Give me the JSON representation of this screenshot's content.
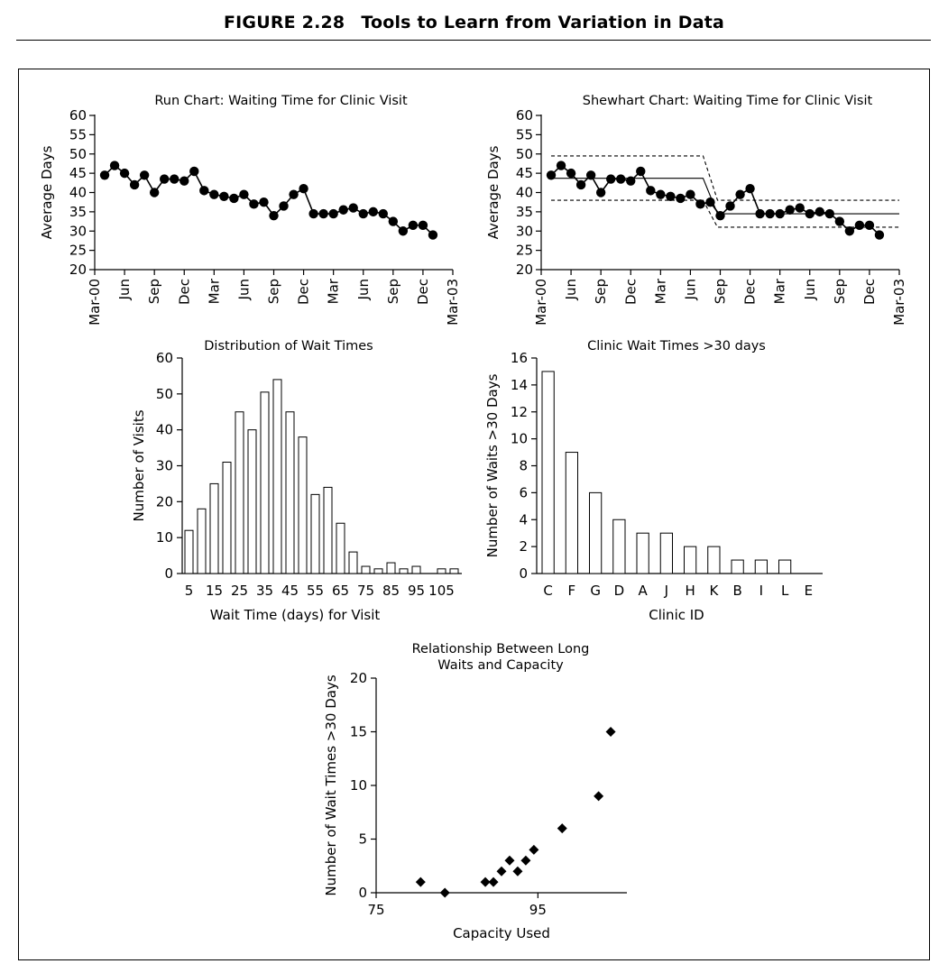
{
  "figure": {
    "label": "FIGURE 2.28",
    "title": "Tools to Learn from Variation in Data"
  },
  "chart_data": [
    {
      "type": "line",
      "title": "Run Chart: Waiting Time for Clinic Visit",
      "ylabel": "Average Days",
      "xlabel": "",
      "ylim": [
        20,
        60
      ],
      "yticks": [
        20,
        25,
        30,
        35,
        40,
        45,
        50,
        55,
        60
      ],
      "xtick_labels": [
        "Mar-00",
        "Jun",
        "Sep",
        "Dec",
        "Mar",
        "Jun",
        "Sep",
        "Dec",
        "Mar",
        "Jun",
        "Sep",
        "Dec",
        "Mar-03"
      ],
      "x": [
        "Apr-00",
        "May-00",
        "Jun-00",
        "Jul-00",
        "Aug-00",
        "Sep-00",
        "Oct-00",
        "Nov-00",
        "Dec-00",
        "Jan-01",
        "Feb-01",
        "Mar-01",
        "Apr-01",
        "May-01",
        "Jun-01",
        "Jul-01",
        "Aug-01",
        "Sep-01",
        "Oct-01",
        "Nov-01",
        "Dec-01",
        "Jan-02",
        "Feb-02",
        "Mar-02",
        "Apr-02",
        "May-02",
        "Jun-02",
        "Jul-02",
        "Aug-02",
        "Sep-02",
        "Oct-02",
        "Nov-02",
        "Dec-02",
        "Jan-03"
      ],
      "series": [
        {
          "values": [
            44.5,
            47,
            45,
            42,
            44.5,
            40,
            43.5,
            43.5,
            43,
            45.5,
            40.5,
            39.5,
            39,
            38.5,
            39.5,
            37,
            37.5,
            34,
            36.5,
            39.5,
            41,
            34.5,
            34.5,
            34.5,
            35.5,
            36,
            34.5,
            35,
            34.5,
            32.5,
            30,
            31.5,
            31.5,
            29
          ]
        }
      ],
      "grid": false
    },
    {
      "type": "line",
      "title": "Shewhart Chart: Waiting Time for Clinic Visit",
      "ylabel": "Average Days",
      "xlabel": "",
      "ylim": [
        20,
        60
      ],
      "yticks": [
        20,
        25,
        30,
        35,
        40,
        45,
        50,
        55,
        60
      ],
      "xtick_labels": [
        "Mar-00",
        "Jun",
        "Sep",
        "Dec",
        "Mar",
        "Jun",
        "Sep",
        "Dec",
        "Mar",
        "Jun",
        "Sep",
        "Dec",
        "Mar-03"
      ],
      "x": [
        "Apr-00",
        "May-00",
        "Jun-00",
        "Jul-00",
        "Aug-00",
        "Sep-00",
        "Oct-00",
        "Nov-00",
        "Dec-00",
        "Jan-01",
        "Feb-01",
        "Mar-01",
        "Apr-01",
        "May-01",
        "Jun-01",
        "Jul-01",
        "Aug-01",
        "Sep-01",
        "Oct-01",
        "Nov-01",
        "Dec-01",
        "Jan-02",
        "Feb-02",
        "Mar-02",
        "Apr-02",
        "May-02",
        "Jun-02",
        "Jul-02",
        "Aug-02",
        "Sep-02",
        "Oct-02",
        "Nov-02",
        "Dec-02",
        "Jan-03"
      ],
      "series": [
        {
          "values": [
            44.5,
            47,
            45,
            42,
            44.5,
            40,
            43.5,
            43.5,
            43,
            45.5,
            40.5,
            39.5,
            39,
            38.5,
            39.5,
            37,
            37.5,
            34,
            36.5,
            39.5,
            41,
            34.5,
            34.5,
            34.5,
            35.5,
            36,
            34.5,
            35,
            34.5,
            32.5,
            30,
            31.5,
            31.5,
            29
          ]
        }
      ],
      "limits": [
        {
          "from": "Apr-00",
          "to": "Jul-01",
          "center": 43.7,
          "ucl": 49.5,
          "lcl": 38
        },
        {
          "from": "Aug-01",
          "to": "Feb-03",
          "center": 34.5,
          "ucl": 38,
          "lcl": 31
        }
      ],
      "grid": false
    },
    {
      "type": "bar",
      "title": "Distribution of Wait Times",
      "xlabel": "Wait Time (days) for Visit",
      "ylabel": "Number of Visits",
      "ylim": [
        0,
        60
      ],
      "yticks": [
        0,
        10,
        20,
        30,
        40,
        50,
        60
      ],
      "categories": [
        "5",
        "10",
        "15",
        "20",
        "25",
        "30",
        "35",
        "40",
        "45",
        "50",
        "55",
        "60",
        "65",
        "70",
        "75",
        "80",
        "85",
        "90",
        "95",
        "100",
        "105",
        "110"
      ],
      "xtick_labels": [
        "5",
        "15",
        "25",
        "35",
        "45",
        "55",
        "65",
        "75",
        "85",
        "95",
        "105"
      ],
      "values": [
        12,
        18,
        25,
        31,
        45,
        40,
        50.5,
        54,
        45,
        38,
        22,
        24,
        14,
        6,
        2,
        1.3,
        3,
        1.3,
        2,
        0,
        1.3,
        1.3
      ],
      "grid": false
    },
    {
      "type": "bar",
      "title": "Clinic Wait Times >30 days",
      "xlabel": "Clinic ID",
      "ylabel": "Number of Waits >30 Days",
      "ylim": [
        0,
        16
      ],
      "yticks": [
        0,
        2,
        4,
        6,
        8,
        10,
        12,
        14,
        16
      ],
      "categories": [
        "C",
        "F",
        "G",
        "D",
        "A",
        "J",
        "H",
        "K",
        "B",
        "I",
        "L",
        "E"
      ],
      "values": [
        15,
        9,
        6,
        4,
        3,
        3,
        2,
        2,
        1,
        1,
        1,
        0
      ],
      "grid": false
    },
    {
      "type": "scatter",
      "title": "Relationship Between Long Waits and Capacity",
      "title_lines": [
        "Relationship Between Long",
        "Waits and Capacity"
      ],
      "xlabel": "Capacity Used",
      "ylabel": "Number of Wait Times >30 Days",
      "xlim": [
        75,
        106
      ],
      "ylim": [
        0,
        20
      ],
      "xticks": [
        75,
        95
      ],
      "yticks": [
        0,
        5,
        10,
        15,
        20
      ],
      "points": [
        {
          "x": 80.5,
          "y": 1
        },
        {
          "x": 83.5,
          "y": 0
        },
        {
          "x": 88.5,
          "y": 1
        },
        {
          "x": 89.5,
          "y": 1
        },
        {
          "x": 90.5,
          "y": 2
        },
        {
          "x": 91.5,
          "y": 3
        },
        {
          "x": 92.5,
          "y": 2
        },
        {
          "x": 93.5,
          "y": 3
        },
        {
          "x": 94.5,
          "y": 4
        },
        {
          "x": 98,
          "y": 6
        },
        {
          "x": 102.5,
          "y": 9
        },
        {
          "x": 104,
          "y": 15
        }
      ],
      "grid": false
    }
  ]
}
